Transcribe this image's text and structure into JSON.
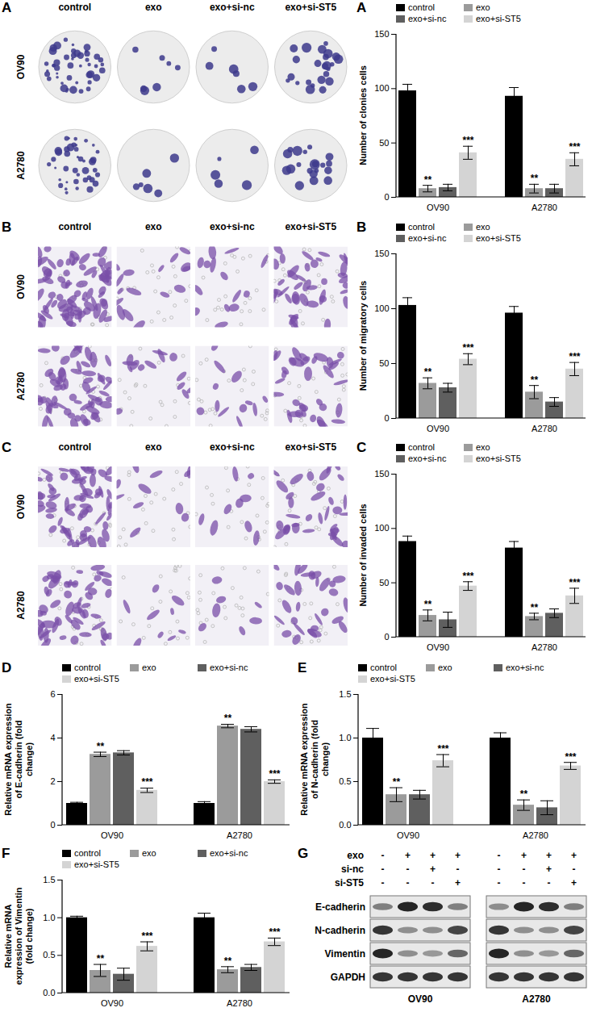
{
  "chart_data": [
    {
      "type": "bar",
      "title": "A",
      "ylabel": "Number of clonies cells",
      "categories": [
        "OV90",
        "A2780"
      ],
      "ylim": [
        0,
        150
      ],
      "yticks": [
        0,
        50,
        100,
        150
      ],
      "grid": false,
      "legend": "top-left",
      "series": [
        {
          "name": "control",
          "color": "#000000",
          "values": [
            98,
            93
          ],
          "errors": [
            6,
            8
          ]
        },
        {
          "name": "exo",
          "color": "#9b9b9b",
          "values": [
            8,
            8
          ],
          "errors": [
            3,
            4
          ]
        },
        {
          "name": "exo+si-nc",
          "color": "#5f5f5f",
          "values": [
            9,
            8
          ],
          "errors": [
            3,
            4
          ]
        },
        {
          "name": "exo+si-ST5",
          "color": "#d4d4d4",
          "values": [
            41,
            35
          ],
          "errors": [
            6,
            6
          ]
        }
      ],
      "annotations": [
        {
          "category": "OV90",
          "series": "exo",
          "text": "**"
        },
        {
          "category": "A2780",
          "series": "exo",
          "text": "**"
        },
        {
          "category": "OV90",
          "series": "exo+si-ST5",
          "text": "***"
        },
        {
          "category": "A2780",
          "series": "exo+si-ST5",
          "text": "***"
        }
      ]
    },
    {
      "type": "bar",
      "title": "B",
      "ylabel": "Number of migratory cells",
      "categories": [
        "OV90",
        "A2780"
      ],
      "ylim": [
        0,
        150
      ],
      "yticks": [
        0,
        50,
        100,
        150
      ],
      "grid": false,
      "legend": "top-left",
      "series": [
        {
          "name": "control",
          "color": "#000000",
          "values": [
            103,
            96
          ],
          "errors": [
            7,
            6
          ]
        },
        {
          "name": "exo",
          "color": "#9b9b9b",
          "values": [
            32,
            24
          ],
          "errors": [
            5,
            6
          ]
        },
        {
          "name": "exo+si-nc",
          "color": "#5f5f5f",
          "values": [
            28,
            15
          ],
          "errors": [
            4,
            4
          ]
        },
        {
          "name": "exo+si-ST5",
          "color": "#d4d4d4",
          "values": [
            54,
            45
          ],
          "errors": [
            5,
            6
          ]
        }
      ],
      "annotations": [
        {
          "category": "OV90",
          "series": "exo",
          "text": "**"
        },
        {
          "category": "A2780",
          "series": "exo",
          "text": "**"
        },
        {
          "category": "OV90",
          "series": "exo+si-ST5",
          "text": "***"
        },
        {
          "category": "A2780",
          "series": "exo+si-ST5",
          "text": "***"
        }
      ]
    },
    {
      "type": "bar",
      "title": "C",
      "ylabel": "Number of invaded cells",
      "categories": [
        "OV90",
        "A2780"
      ],
      "ylim": [
        0,
        150
      ],
      "yticks": [
        0,
        50,
        100,
        150
      ],
      "grid": false,
      "legend": "top-left",
      "series": [
        {
          "name": "control",
          "color": "#000000",
          "values": [
            88,
            82
          ],
          "errors": [
            5,
            6
          ]
        },
        {
          "name": "exo",
          "color": "#9b9b9b",
          "values": [
            20,
            19
          ],
          "errors": [
            5,
            3
          ]
        },
        {
          "name": "exo+si-nc",
          "color": "#5f5f5f",
          "values": [
            16,
            22
          ],
          "errors": [
            7,
            4
          ]
        },
        {
          "name": "exo+si-ST5",
          "color": "#d4d4d4",
          "values": [
            47,
            38
          ],
          "errors": [
            4,
            7
          ]
        }
      ],
      "annotations": [
        {
          "category": "OV90",
          "series": "exo",
          "text": "**"
        },
        {
          "category": "A2780",
          "series": "exo",
          "text": "**"
        },
        {
          "category": "OV90",
          "series": "exo+si-ST5",
          "text": "***"
        },
        {
          "category": "A2780",
          "series": "exo+si-ST5",
          "text": "***"
        }
      ]
    },
    {
      "type": "bar",
      "title": "D",
      "ylabel": "Relative mRNA expression of E-cadherin (fold change)",
      "categories": [
        "OV90",
        "A2780"
      ],
      "ylim": [
        0,
        6
      ],
      "yticks": [
        0,
        2,
        4,
        6
      ],
      "grid": false,
      "legend": "top-left",
      "series": [
        {
          "name": "control",
          "color": "#000000",
          "values": [
            1.0,
            1.0
          ],
          "errors": [
            0.05,
            0.08
          ]
        },
        {
          "name": "exo",
          "color": "#9b9b9b",
          "values": [
            3.25,
            4.55
          ],
          "errors": [
            0.1,
            0.08
          ]
        },
        {
          "name": "exo+si-nc",
          "color": "#5f5f5f",
          "values": [
            3.32,
            4.4
          ],
          "errors": [
            0.1,
            0.12
          ]
        },
        {
          "name": "exo+si-ST5",
          "color": "#d4d4d4",
          "values": [
            1.6,
            2.0
          ],
          "errors": [
            0.1,
            0.08
          ]
        }
      ],
      "annotations": [
        {
          "category": "OV90",
          "series": "exo",
          "text": "**"
        },
        {
          "category": "A2780",
          "series": "exo",
          "text": "**"
        },
        {
          "category": "OV90",
          "series": "exo+si-ST5",
          "text": "***"
        },
        {
          "category": "A2780",
          "series": "exo+si-ST5",
          "text": "***"
        }
      ]
    },
    {
      "type": "bar",
      "title": "E",
      "ylabel": "Relative mRNA expression of N-cadherin (fold change)",
      "categories": [
        "OV90",
        "A2780"
      ],
      "ylim": [
        0,
        1.5
      ],
      "yticks": [
        {
          "value": 0,
          "label": "0.0"
        },
        0.5,
        {
          "value": 1,
          "label": "1.0"
        },
        1.5
      ],
      "grid": false,
      "legend": "top-left",
      "series": [
        {
          "name": "control",
          "color": "#000000",
          "values": [
            1.0,
            1.0
          ],
          "errors": [
            0.11,
            0.06
          ]
        },
        {
          "name": "exo",
          "color": "#9b9b9b",
          "values": [
            0.35,
            0.23
          ],
          "errors": [
            0.08,
            0.06
          ]
        },
        {
          "name": "exo+si-nc",
          "color": "#5f5f5f",
          "values": [
            0.35,
            0.2
          ],
          "errors": [
            0.05,
            0.08
          ]
        },
        {
          "name": "exo+si-ST5",
          "color": "#d4d4d4",
          "values": [
            0.74,
            0.68
          ],
          "errors": [
            0.07,
            0.04
          ]
        }
      ],
      "annotations": [
        {
          "category": "OV90",
          "series": "exo",
          "text": "**"
        },
        {
          "category": "A2780",
          "series": "exo",
          "text": "**"
        },
        {
          "category": "OV90",
          "series": "exo+si-ST5",
          "text": "***"
        },
        {
          "category": "A2780",
          "series": "exo+si-ST5",
          "text": "***"
        }
      ]
    },
    {
      "type": "bar",
      "title": "F",
      "ylabel": "Relative mRNA expression of Vimentin (fold change)",
      "categories": [
        "OV90",
        "A2780"
      ],
      "ylim": [
        0,
        1.5
      ],
      "yticks": [
        {
          "value": 0,
          "label": "0.0"
        },
        0.5,
        {
          "value": 1,
          "label": "1.0"
        },
        1.5
      ],
      "grid": false,
      "legend": "top-left",
      "series": [
        {
          "name": "control",
          "color": "#000000",
          "values": [
            1.0,
            1.0
          ],
          "errors": [
            0.02,
            0.06
          ]
        },
        {
          "name": "exo",
          "color": "#9b9b9b",
          "values": [
            0.3,
            0.31
          ],
          "errors": [
            0.08,
            0.04
          ]
        },
        {
          "name": "exo+si-nc",
          "color": "#5f5f5f",
          "values": [
            0.25,
            0.34
          ],
          "errors": [
            0.08,
            0.04
          ]
        },
        {
          "name": "exo+si-ST5",
          "color": "#d4d4d4",
          "values": [
            0.62,
            0.68
          ],
          "errors": [
            0.06,
            0.05
          ]
        }
      ],
      "annotations": [
        {
          "category": "OV90",
          "series": "exo",
          "text": "**"
        },
        {
          "category": "A2780",
          "series": "exo",
          "text": "**"
        },
        {
          "category": "OV90",
          "series": "exo+si-ST5",
          "text": "***"
        },
        {
          "category": "A2780",
          "series": "exo+si-ST5",
          "text": "***"
        }
      ]
    }
  ],
  "image_panels": [
    {
      "panel": "A",
      "columns": [
        "control",
        "exo",
        "exo+si-nc",
        "exo+si-ST5"
      ],
      "rows": [
        "OV90",
        "A2780"
      ]
    },
    {
      "panel": "B",
      "columns": [
        "control",
        "exo",
        "exo+si-nc",
        "exo+si-ST5"
      ],
      "rows": [
        "OV90",
        "A2780"
      ]
    },
    {
      "panel": "C",
      "columns": [
        "control",
        "exo",
        "exo+si-nc",
        "exo+si-ST5"
      ],
      "rows": [
        "OV90",
        "A2780"
      ]
    }
  ],
  "western_blot": {
    "panel": "G",
    "conditions": [
      {
        "label": "exo",
        "signs": [
          "-",
          "+",
          "+",
          "+"
        ]
      },
      {
        "label": "si-nc",
        "signs": [
          "-",
          "-",
          "+",
          "-"
        ]
      },
      {
        "label": "si-ST5",
        "signs": [
          "-",
          "-",
          "-",
          "+"
        ]
      }
    ],
    "proteins": [
      "E-cadherin",
      "N-cadherin",
      "Vimentin",
      "GAPDH"
    ],
    "cell_lines": [
      "OV90",
      "A2780"
    ]
  }
}
